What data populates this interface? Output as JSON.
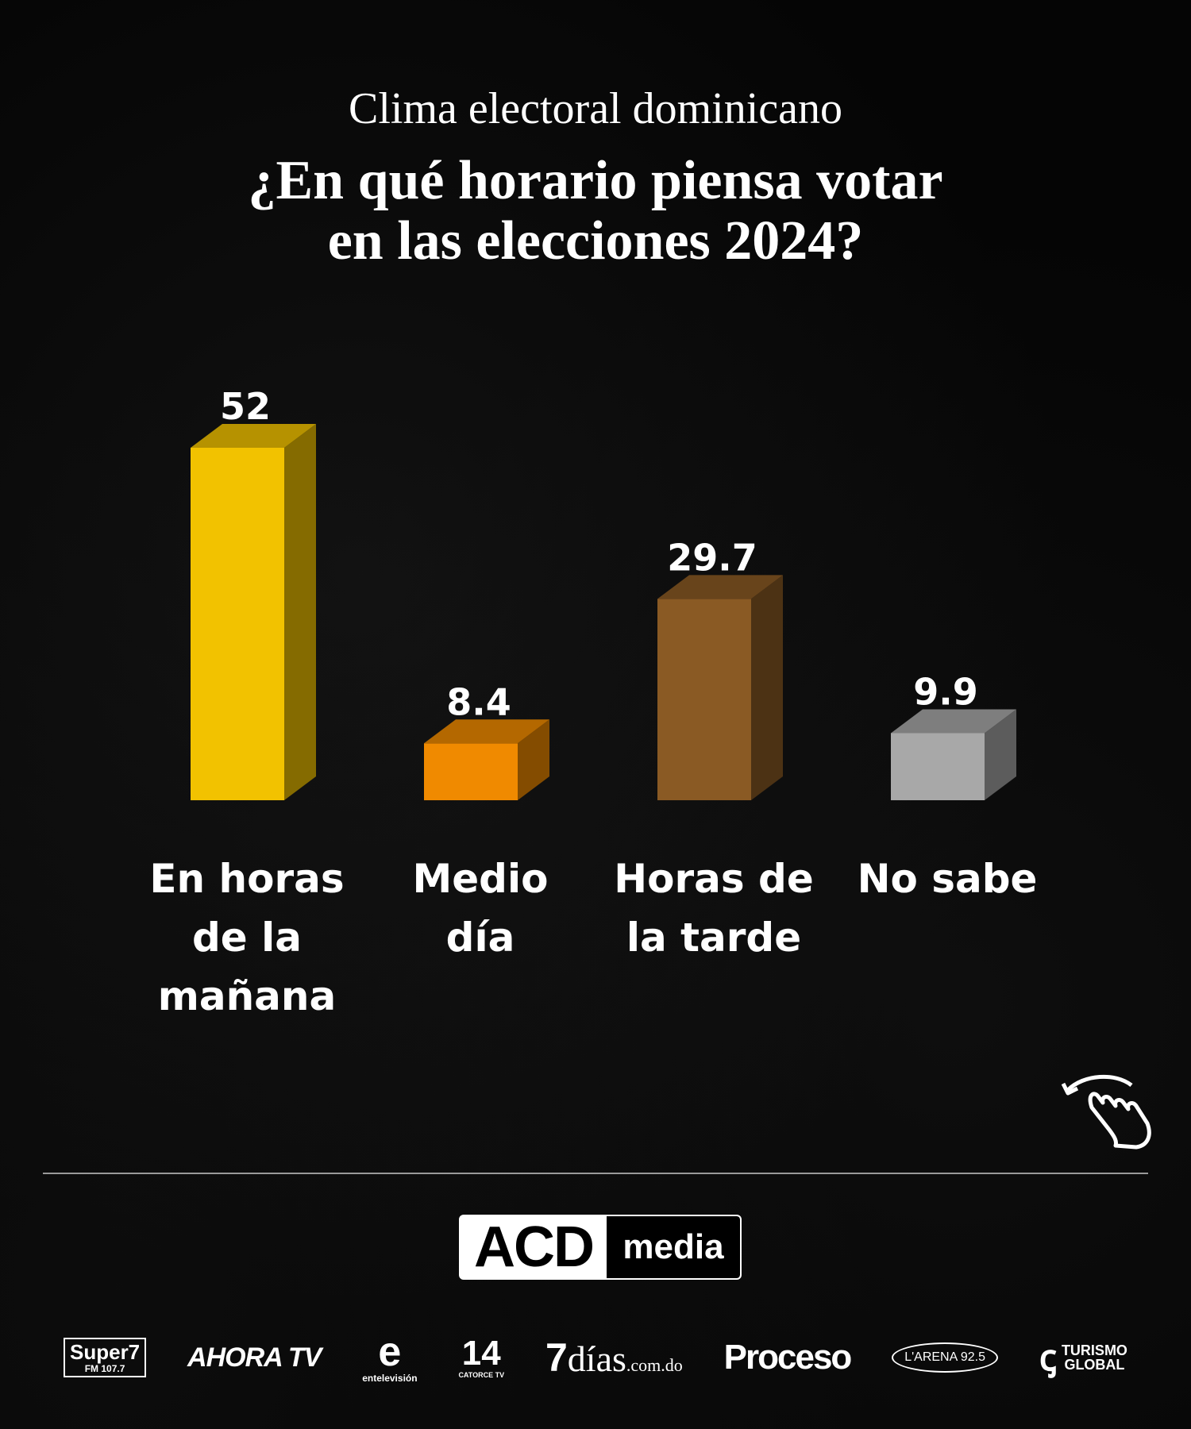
{
  "header": {
    "kicker": "Clima electoral dominicano",
    "headline_line1": "¿En qué horario piensa votar",
    "headline_line2": "en las elecciones 2024?"
  },
  "chart_data": {
    "type": "bar",
    "title": "¿En qué horario piensa votar en las elecciones 2024?",
    "categories": [
      "En horas de la mañana",
      "Medio día",
      "Horas de la tarde",
      "No sabe"
    ],
    "category_lines": [
      [
        "En horas",
        "de la",
        "mañana"
      ],
      [
        "Medio día"
      ],
      [
        "Horas de",
        "la tarde"
      ],
      [
        "No sabe"
      ]
    ],
    "values": [
      52,
      8.4,
      29.7,
      9.9
    ],
    "value_labels": [
      "52",
      "8.4",
      "29.7",
      "9.9"
    ],
    "colors": [
      "#f2c200",
      "#f08a00",
      "#8a5a24",
      "#a8a8a8"
    ],
    "style": "3d-bar",
    "grid": false,
    "legend": "none",
    "ylim": [
      0,
      52
    ]
  },
  "swipe_icon": "swipe-hand-icon",
  "brand": {
    "left": "ACD",
    "right": "media"
  },
  "partners": {
    "super_main": "Super7",
    "super_sub": "FM 107.7",
    "ahora": "AHORA TV",
    "ente_mark": "e",
    "ente_sub": "entelevisión",
    "catorce_mark": "14",
    "catorce_sub": "CATORCE TV",
    "dias_mark": "7",
    "dias_word": "días",
    "dias_tld": ".com.do",
    "proceso": "Proceso",
    "arena": "L'ARENA 92.5",
    "turismo_mark": "ꞔ",
    "turismo_line1": "TURISMO",
    "turismo_line2": "GLOBAL"
  }
}
